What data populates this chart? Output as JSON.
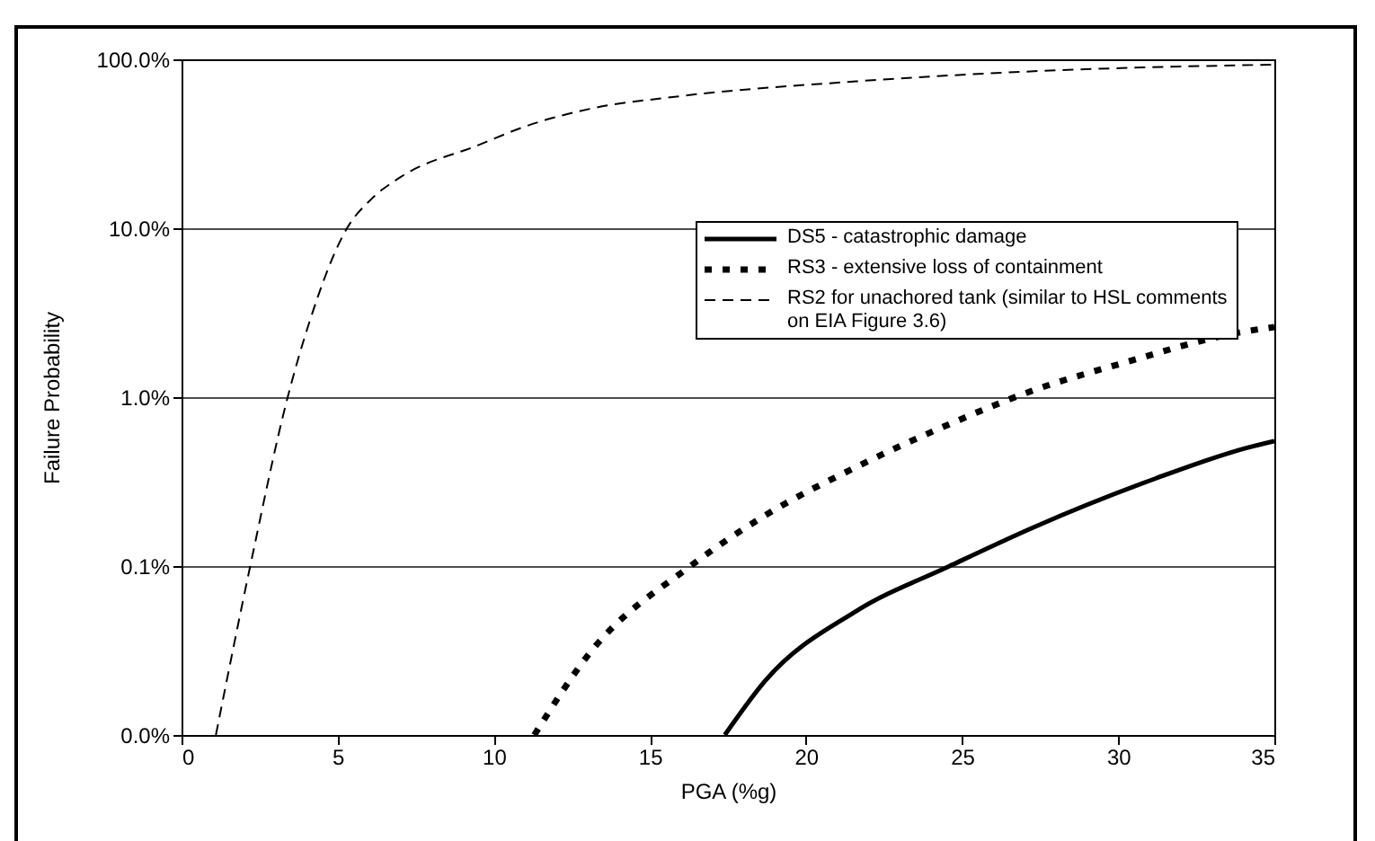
{
  "chart_data": {
    "type": "line",
    "xlabel": "PGA (%g)",
    "ylabel": "Failure Probability",
    "xlim": [
      0,
      35
    ],
    "xticks": [
      0,
      5,
      10,
      15,
      20,
      25,
      30,
      35
    ],
    "ylim": [
      0.01,
      100
    ],
    "yticks": [
      {
        "value": 0.01,
        "label": "0.0%"
      },
      {
        "value": 0.1,
        "label": "0.1%"
      },
      {
        "value": 1,
        "label": "1.0%"
      },
      {
        "value": 10,
        "label": "10.0%"
      },
      {
        "value": 100,
        "label": "100.0%"
      }
    ],
    "log": "y",
    "grid": "y",
    "legend": "top right",
    "series": [
      {
        "name": "DS5 - catastrophic damage",
        "color": "#000000",
        "line_style": "solid",
        "x": [
          17.4,
          18.7,
          21.6,
          24.6,
          27.3,
          31.2,
          34.1,
          35
        ],
        "values": [
          0.01,
          0.021,
          0.054,
          0.1,
          0.17,
          0.33,
          0.5,
          0.55
        ]
      },
      {
        "name": "RS3 - extensive loss of containment",
        "color": "#000000",
        "line_style": "dotted",
        "x": [
          11.3,
          13.1,
          16.3,
          18.7,
          21.6,
          24.5,
          27.3,
          30.2,
          33.8,
          35
        ],
        "values": [
          0.01,
          0.031,
          0.1,
          0.2,
          0.385,
          0.68,
          1.1,
          1.6,
          2.4,
          2.6
        ]
      },
      {
        "name": "RS2 for unachored tank (similar to HSL comments on EIA Figure 3.6)",
        "color": "#000000",
        "line_style": "dashed",
        "x": [
          1.1,
          2.2,
          3.4,
          4.1,
          5.3,
          6.1,
          7.0,
          9.5,
          11.0,
          13.1,
          15.8,
          21.6,
          27.3,
          35
        ],
        "values": [
          0.01,
          0.1,
          1,
          2.8,
          10,
          15,
          20,
          31,
          40,
          51,
          60,
          74,
          85,
          93
        ]
      }
    ]
  }
}
